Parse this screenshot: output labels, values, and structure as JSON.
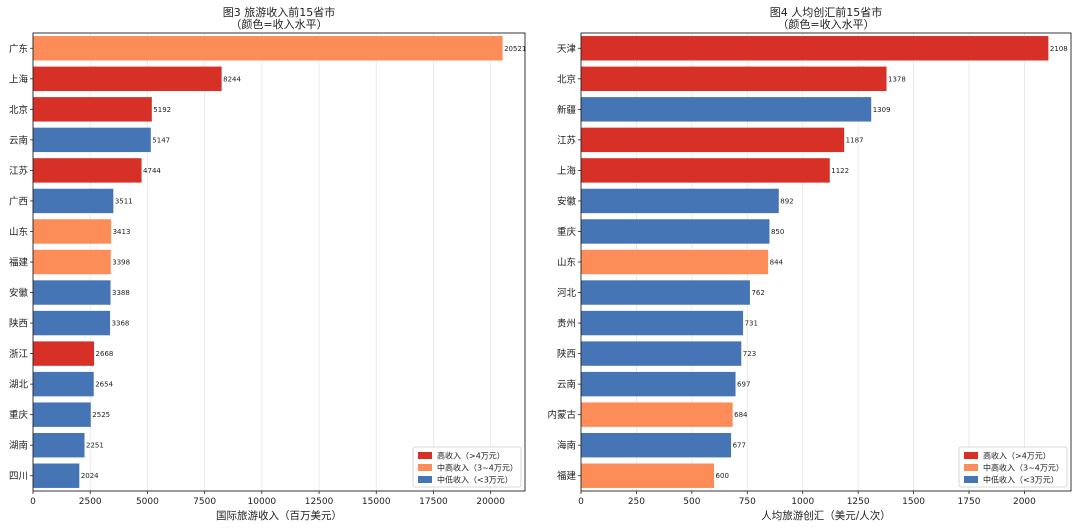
{
  "chart_data": [
    {
      "type": "bar",
      "orientation": "horizontal",
      "title": "图3   旅游收入前15省市",
      "subtitle": "（颜色=收入水平）",
      "xlabel": "国际旅游收入（百万美元）",
      "ylabel": "",
      "xlim": [
        0,
        21500
      ],
      "xticks": [
        0,
        2500,
        5000,
        7500,
        10000,
        12500,
        15000,
        17500,
        20000
      ],
      "grid": "vertical",
      "legend_position": "lower-right",
      "categories": [
        "广东",
        "上海",
        "北京",
        "云南",
        "江苏",
        "广西",
        "山东",
        "福建",
        "安徽",
        "陕西",
        "浙江",
        "湖北",
        "重庆",
        "湖南",
        "四川"
      ],
      "values": [
        20521,
        8244,
        5192,
        5147,
        4744,
        3511,
        3413,
        3398,
        3388,
        3368,
        2668,
        2654,
        2525,
        2251,
        2024
      ],
      "groups": [
        "upper-middle",
        "high",
        "high",
        "lower-middle",
        "high",
        "lower-middle",
        "upper-middle",
        "upper-middle",
        "lower-middle",
        "lower-middle",
        "high",
        "lower-middle",
        "lower-middle",
        "lower-middle",
        "lower-middle"
      ]
    },
    {
      "type": "bar",
      "orientation": "horizontal",
      "title": "图4   人均创汇前15省市",
      "subtitle": "（颜色=收入水平）",
      "xlabel": "人均旅游创汇（美元/人次）",
      "ylabel": "",
      "xlim": [
        0,
        2210
      ],
      "xticks": [
        0,
        250,
        500,
        750,
        1000,
        1250,
        1500,
        1750,
        2000
      ],
      "grid": "vertical",
      "legend_position": "lower-right",
      "categories": [
        "天津",
        "北京",
        "新疆",
        "江苏",
        "上海",
        "安徽",
        "重庆",
        "山东",
        "河北",
        "贵州",
        "陕西",
        "云南",
        "内蒙古",
        "海南",
        "福建"
      ],
      "values": [
        2108,
        1378,
        1309,
        1187,
        1122,
        892,
        850,
        844,
        762,
        731,
        723,
        697,
        684,
        677,
        600
      ],
      "groups": [
        "high",
        "high",
        "lower-middle",
        "high",
        "high",
        "lower-middle",
        "lower-middle",
        "upper-middle",
        "lower-middle",
        "lower-middle",
        "lower-middle",
        "lower-middle",
        "upper-middle",
        "lower-middle",
        "upper-middle"
      ]
    }
  ],
  "legend": [
    {
      "key": "high",
      "label": "高收入（>4万元）",
      "color": "#d73027"
    },
    {
      "key": "upper-middle",
      "label": "中高收入（3~4万元）",
      "color": "#fc8d59"
    },
    {
      "key": "lower-middle",
      "label": "中低收入（<3万元）",
      "color": "#4575b4"
    }
  ]
}
